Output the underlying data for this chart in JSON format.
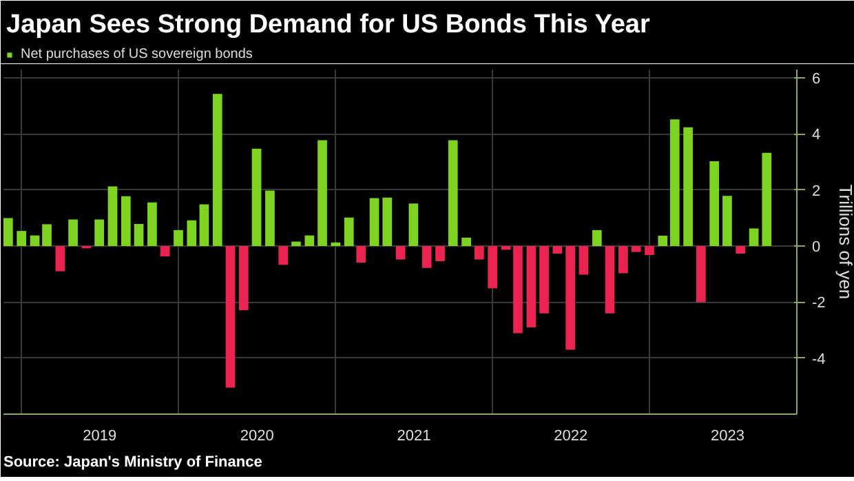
{
  "chart_data": {
    "type": "bar",
    "title": "Japan Sees Strong Demand for US Bonds This Year",
    "ylabel": "Trillions of yen",
    "annotations": [
      "Source: Japan's Ministry of Finance"
    ],
    "x": [
      "2018-12",
      "2019-01",
      "2019-02",
      "2019-03",
      "2019-04",
      "2019-05",
      "2019-06",
      "2019-07",
      "2019-08",
      "2019-09",
      "2019-10",
      "2019-11",
      "2019-12",
      "2020-01",
      "2020-02",
      "2020-03",
      "2020-04",
      "2020-05",
      "2020-06",
      "2020-07",
      "2020-08",
      "2020-09",
      "2020-10",
      "2020-11",
      "2020-12",
      "2021-01",
      "2021-02",
      "2021-03",
      "2021-04",
      "2021-05",
      "2021-06",
      "2021-07",
      "2021-08",
      "2021-09",
      "2021-10",
      "2021-11",
      "2021-12",
      "2022-01",
      "2022-02",
      "2022-03",
      "2022-04",
      "2022-05",
      "2022-06",
      "2022-07",
      "2022-08",
      "2022-09",
      "2022-10",
      "2022-11",
      "2022-12",
      "2023-01",
      "2023-02",
      "2023-03",
      "2023-04",
      "2023-05",
      "2023-06",
      "2023-07",
      "2023-08",
      "2023-09",
      "2023-10"
    ],
    "series": [
      {
        "name": "Net purchases of US sovereign bonds",
        "color": "#7ed321",
        "values": [
          1.0,
          0.54,
          0.38,
          0.78,
          -0.9,
          0.95,
          -0.08,
          0.95,
          2.13,
          1.78,
          0.79,
          1.56,
          -0.37,
          0.57,
          0.92,
          1.49,
          5.43,
          -5.05,
          -2.29,
          3.48,
          1.98,
          -0.67,
          0.16,
          0.38,
          3.78,
          0.13,
          1.02,
          -0.59,
          1.71,
          1.73,
          -0.48,
          1.52,
          -0.78,
          -0.54,
          3.78,
          0.3,
          -0.48,
          -1.51,
          -0.13,
          -3.11,
          -2.9,
          -2.4,
          -0.27,
          -3.7,
          -1.02,
          0.57,
          -2.4,
          -0.97,
          -0.21,
          -0.32,
          0.37,
          4.52,
          4.24,
          -2.0,
          3.03,
          1.79,
          -0.27,
          0.63,
          3.33
        ],
        "colors": [
          "#7ed321",
          "#7ed321",
          "#7ed321",
          "#7ed321",
          "#ea2350",
          "#7ed321",
          "#ea2350",
          "#7ed321",
          "#7ed321",
          "#7ed321",
          "#7ed321",
          "#7ed321",
          "#ea2350",
          "#7ed321",
          "#7ed321",
          "#7ed321",
          "#7ed321",
          "#ea2350",
          "#ea2350",
          "#7ed321",
          "#7ed321",
          "#ea2350",
          "#7ed321",
          "#7ed321",
          "#7ed321",
          "#7ed321",
          "#7ed321",
          "#ea2350",
          "#7ed321",
          "#7ed321",
          "#ea2350",
          "#7ed321",
          "#ea2350",
          "#ea2350",
          "#7ed321",
          "#7ed321",
          "#ea2350",
          "#ea2350",
          "#ea2350",
          "#ea2350",
          "#ea2350",
          "#ea2350",
          "#ea2350",
          "#ea2350",
          "#ea2350",
          "#7ed321",
          "#ea2350",
          "#ea2350",
          "#ea2350",
          "#ea2350",
          "#7ed321",
          "#7ed321",
          "#7ed321",
          "#ea2350",
          "#7ed321",
          "#7ed321",
          "#ea2350",
          "#7ed321",
          "#7ed321"
        ]
      }
    ],
    "xlim": [
      "2018-11-20",
      "2023-12-10"
    ],
    "xticks": [
      {
        "value": "2019-01-01",
        "label": null
      },
      {
        "value": "2019-07-02",
        "label": "2019"
      },
      {
        "value": "2020-01-01",
        "label": null
      },
      {
        "value": "2020-07-02",
        "label": "2020"
      },
      {
        "value": "2021-01-01",
        "label": null
      },
      {
        "value": "2021-07-02",
        "label": "2021"
      },
      {
        "value": "2022-01-01",
        "label": null
      },
      {
        "value": "2022-07-02",
        "label": "2022"
      },
      {
        "value": "2023-01-01",
        "label": null
      },
      {
        "value": "2023-07-02",
        "label": "2023"
      }
    ],
    "ylim": [
      -6,
      6.3
    ],
    "yticks": [
      -4,
      -2,
      0,
      2,
      4,
      6
    ],
    "grid": true,
    "legend": "top left"
  }
}
